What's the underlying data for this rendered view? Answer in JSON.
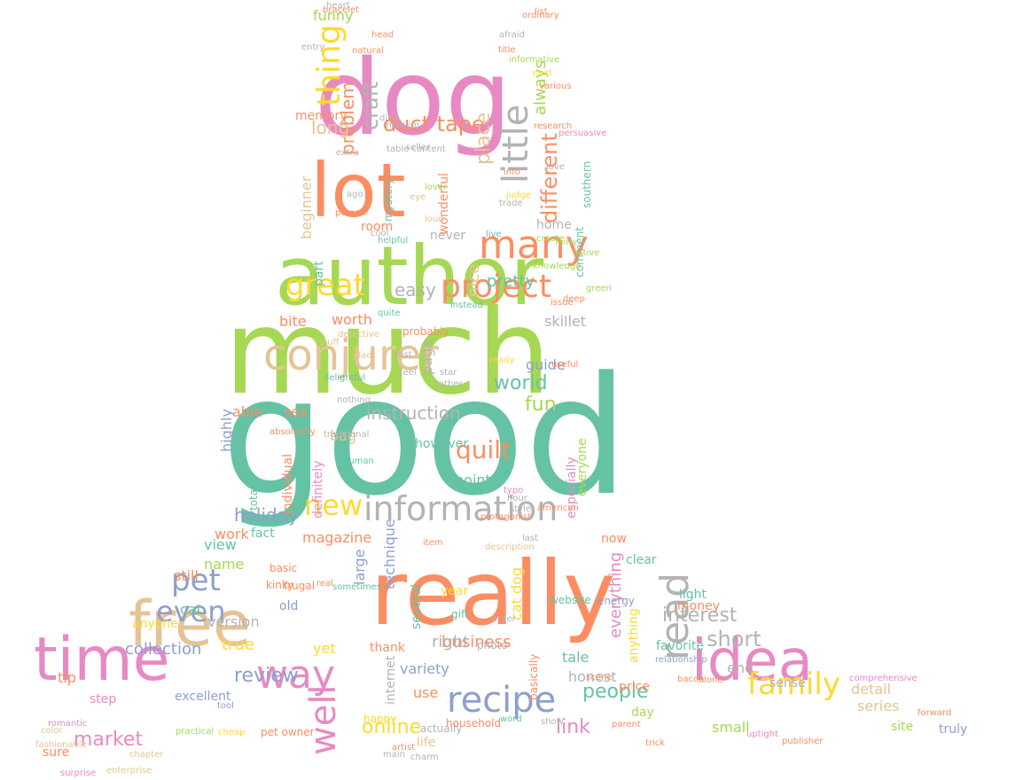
{
  "palette": {
    "teal": "#66c2a5",
    "orange": "#fc8d62",
    "blue": "#8da0cb",
    "pink": "#e78ac3",
    "green": "#a6d854",
    "yellow": "#ffd92f",
    "tan": "#e5c494",
    "gray": "#b3b3b3"
  },
  "mask_shape": "dog-silhouette",
  "words": [
    {
      "text": "good",
      "color": "teal"
    },
    {
      "text": "much",
      "color": "green"
    },
    {
      "text": "really",
      "color": "orange"
    },
    {
      "text": "dog",
      "color": "pink"
    },
    {
      "text": "author",
      "color": "green"
    },
    {
      "text": "time",
      "color": "pink"
    },
    {
      "text": "idea",
      "color": "pink"
    },
    {
      "text": "lot",
      "color": "orange"
    },
    {
      "text": "free",
      "color": "tan"
    },
    {
      "text": "conjurer",
      "color": "tan"
    },
    {
      "text": "information",
      "color": "gray"
    },
    {
      "text": "recipe",
      "color": "blue"
    },
    {
      "text": "many",
      "color": "orange"
    },
    {
      "text": "project",
      "color": "orange"
    },
    {
      "text": "little",
      "color": "gray"
    },
    {
      "text": "family",
      "color": "yellow"
    },
    {
      "text": "read",
      "color": "gray"
    },
    {
      "text": "well",
      "color": "pink"
    },
    {
      "text": "way",
      "color": "pink"
    },
    {
      "text": "pet",
      "color": "blue"
    },
    {
      "text": "even",
      "color": "blue"
    },
    {
      "text": "great",
      "color": "yellow"
    },
    {
      "text": "thing",
      "color": "yellow"
    },
    {
      "text": "new",
      "color": "yellow"
    },
    {
      "text": "quilt",
      "color": "orange"
    },
    {
      "text": "duct tape",
      "color": "orange"
    },
    {
      "text": "interest",
      "color": "gray"
    },
    {
      "text": "short",
      "color": "gray"
    },
    {
      "text": "market",
      "color": "pink"
    },
    {
      "text": "link",
      "color": "pink"
    },
    {
      "text": "people",
      "color": "teal"
    },
    {
      "text": "online",
      "color": "yellow"
    },
    {
      "text": "world",
      "color": "teal"
    },
    {
      "text": "instruction",
      "color": "gray"
    },
    {
      "text": "review",
      "color": "blue"
    },
    {
      "text": "collection",
      "color": "blue"
    },
    {
      "text": "business",
      "color": "orange"
    },
    {
      "text": "holiday",
      "color": "blue"
    },
    {
      "text": "fun",
      "color": "green"
    },
    {
      "text": "different",
      "color": "orange"
    },
    {
      "text": "craft",
      "color": "gray"
    },
    {
      "text": "problem",
      "color": "orange"
    },
    {
      "text": "place",
      "color": "tan"
    },
    {
      "text": "always",
      "color": "green"
    },
    {
      "text": "long",
      "color": "tan"
    },
    {
      "text": "funny",
      "color": "green"
    },
    {
      "text": "easy",
      "color": "gray"
    },
    {
      "text": "pretty",
      "color": "teal"
    },
    {
      "text": "nice",
      "color": "tan"
    },
    {
      "text": "worth",
      "color": "orange"
    },
    {
      "text": "skillet",
      "color": "gray"
    },
    {
      "text": "bite",
      "color": "orange"
    },
    {
      "text": "able",
      "color": "orange"
    },
    {
      "text": "sex",
      "color": "orange"
    },
    {
      "text": "guide",
      "color": "blue"
    },
    {
      "text": "highly",
      "color": "blue"
    },
    {
      "text": "bag",
      "color": "tan"
    },
    {
      "text": "however",
      "color": "teal"
    },
    {
      "text": "technique",
      "color": "blue"
    },
    {
      "text": "point",
      "color": "teal"
    },
    {
      "text": "work",
      "color": "orange"
    },
    {
      "text": "fact",
      "color": "teal"
    },
    {
      "text": "magazine",
      "color": "orange"
    },
    {
      "text": "view",
      "color": "teal"
    },
    {
      "text": "name",
      "color": "green"
    },
    {
      "text": "still",
      "color": "orange"
    },
    {
      "text": "large",
      "color": "blue"
    },
    {
      "text": "year",
      "color": "yellow"
    },
    {
      "text": "right",
      "color": "gray"
    },
    {
      "text": "cat",
      "color": "teal"
    },
    {
      "text": "anyone",
      "color": "yellow"
    },
    {
      "text": "version",
      "color": "gray"
    },
    {
      "text": "old",
      "color": "blue"
    },
    {
      "text": "true",
      "color": "yellow"
    },
    {
      "text": "yet",
      "color": "yellow"
    },
    {
      "text": "thank",
      "color": "orange"
    },
    {
      "text": "internet",
      "color": "gray"
    },
    {
      "text": "variety",
      "color": "blue"
    },
    {
      "text": "use",
      "color": "orange"
    },
    {
      "text": "tip",
      "color": "orange"
    },
    {
      "text": "step",
      "color": "pink"
    },
    {
      "text": "excellent",
      "color": "blue"
    },
    {
      "text": "sure",
      "color": "orange"
    },
    {
      "text": "life",
      "color": "tan"
    },
    {
      "text": "honest",
      "color": "gray"
    },
    {
      "text": "tale",
      "color": "teal"
    },
    {
      "text": "price",
      "color": "orange"
    },
    {
      "text": "day",
      "color": "green"
    },
    {
      "text": "favorite",
      "color": "teal"
    },
    {
      "text": "money",
      "color": "orange"
    },
    {
      "text": "light",
      "color": "teal"
    },
    {
      "text": "now",
      "color": "orange"
    },
    {
      "text": "clear",
      "color": "teal"
    },
    {
      "text": "end",
      "color": "gray"
    },
    {
      "text": "sense",
      "color": "gray"
    },
    {
      "text": "detail",
      "color": "tan"
    },
    {
      "text": "small",
      "color": "green"
    },
    {
      "text": "series",
      "color": "tan"
    },
    {
      "text": "site",
      "color": "green"
    },
    {
      "text": "truly",
      "color": "blue"
    },
    {
      "text": "home",
      "color": "gray"
    },
    {
      "text": "room",
      "color": "orange"
    },
    {
      "text": "never",
      "color": "gray"
    },
    {
      "text": "part",
      "color": "teal"
    },
    {
      "text": "memory",
      "color": "orange"
    },
    {
      "text": "beginner",
      "color": "tan"
    },
    {
      "text": "cat dog",
      "color": "yellow"
    },
    {
      "text": "everything",
      "color": "pink"
    },
    {
      "text": "anything",
      "color": "yellow"
    },
    {
      "text": "especially",
      "color": "pink"
    },
    {
      "text": "everyone",
      "color": "green"
    },
    {
      "text": "several",
      "color": "teal"
    },
    {
      "text": "definitely",
      "color": "pink"
    },
    {
      "text": "individual",
      "color": "orange"
    },
    {
      "text": "totally",
      "color": "teal"
    },
    {
      "text": "page",
      "color": "gray"
    },
    {
      "text": "wonderful",
      "color": "orange"
    },
    {
      "text": "southern",
      "color": "teal"
    },
    {
      "text": "mystery",
      "color": "teal"
    },
    {
      "text": "comment",
      "color": "teal"
    },
    {
      "text": "website",
      "color": "teal"
    },
    {
      "text": "energy",
      "color": "blue"
    },
    {
      "text": "gift",
      "color": "teal"
    },
    {
      "text": "photo",
      "color": "gray"
    },
    {
      "text": "basically",
      "color": "orange"
    },
    {
      "text": "happy",
      "color": "yellow"
    },
    {
      "text": "actually",
      "color": "gray"
    },
    {
      "text": "household",
      "color": "orange"
    },
    {
      "text": "pet owner",
      "color": "orange"
    },
    {
      "text": "tool",
      "color": "blue"
    },
    {
      "text": "practical",
      "color": "green"
    },
    {
      "text": "cheap",
      "color": "yellow"
    },
    {
      "text": "chapter",
      "color": "tan"
    },
    {
      "text": "romantic",
      "color": "pink"
    },
    {
      "text": "uptight",
      "color": "pink"
    },
    {
      "text": "comprehensive",
      "color": "pink"
    },
    {
      "text": "bacon",
      "color": "orange"
    },
    {
      "text": "alone",
      "color": "orange"
    },
    {
      "text": "scene",
      "color": "orange"
    },
    {
      "text": "instead",
      "color": "teal"
    },
    {
      "text": "probably",
      "color": "orange"
    },
    {
      "text": "quite",
      "color": "teal"
    },
    {
      "text": "detective",
      "color": "tan"
    },
    {
      "text": "glad",
      "color": "tan"
    },
    {
      "text": "fast",
      "color": "gray"
    },
    {
      "text": "feel",
      "color": "gray"
    },
    {
      "text": "star",
      "color": "gray"
    },
    {
      "text": "rather",
      "color": "gray"
    },
    {
      "text": "useful",
      "color": "orange"
    },
    {
      "text": "ready",
      "color": "yellow"
    },
    {
      "text": "kinky",
      "color": "orange"
    },
    {
      "text": "frugal",
      "color": "orange"
    },
    {
      "text": "basic",
      "color": "orange"
    },
    {
      "text": "real",
      "color": "orange"
    },
    {
      "text": "sometimes",
      "color": "teal"
    },
    {
      "text": "helpful",
      "color": "teal"
    },
    {
      "text": "seller",
      "color": "gray"
    },
    {
      "text": "lover",
      "color": "green"
    },
    {
      "text": "info",
      "color": "orange"
    },
    {
      "text": "live",
      "color": "teal"
    },
    {
      "text": "judge",
      "color": "yellow"
    },
    {
      "text": "afraid",
      "color": "gray"
    },
    {
      "text": "love",
      "color": "gray"
    },
    {
      "text": "research",
      "color": "orange"
    },
    {
      "text": "nothing",
      "color": "gray"
    },
    {
      "text": "human",
      "color": "teal"
    },
    {
      "text": "hour",
      "color": "gray"
    },
    {
      "text": "typo",
      "color": "pink"
    },
    {
      "text": "style",
      "color": "gray"
    },
    {
      "text": "order",
      "color": "gray"
    },
    {
      "text": "last",
      "color": "gray"
    },
    {
      "text": "description",
      "color": "tan"
    },
    {
      "text": "protagonist",
      "color": "orange"
    },
    {
      "text": "item",
      "color": "orange"
    },
    {
      "text": "american",
      "color": "orange"
    },
    {
      "text": "absolutely",
      "color": "orange"
    },
    {
      "text": "traditional",
      "color": "gray"
    },
    {
      "text": "delightful",
      "color": "teal"
    },
    {
      "text": "stuff",
      "color": "tan"
    },
    {
      "text": "color",
      "color": "tan"
    },
    {
      "text": "fashionable",
      "color": "tan"
    },
    {
      "text": "surprise",
      "color": "pink"
    },
    {
      "text": "enterprise",
      "color": "tan"
    },
    {
      "text": "charm",
      "color": "gray"
    },
    {
      "text": "main",
      "color": "gray"
    },
    {
      "text": "artist",
      "color": "orange"
    },
    {
      "text": "show",
      "color": "gray"
    },
    {
      "text": "word",
      "color": "teal"
    },
    {
      "text": "parent",
      "color": "orange"
    },
    {
      "text": "trick",
      "color": "orange"
    },
    {
      "text": "relationship",
      "color": "blue"
    },
    {
      "text": "publisher",
      "color": "orange"
    },
    {
      "text": "forward",
      "color": "orange"
    },
    {
      "text": "heart",
      "color": "gray"
    },
    {
      "text": "bracelet",
      "color": "orange"
    },
    {
      "text": "list",
      "color": "orange"
    },
    {
      "text": "ordinary",
      "color": "orange"
    },
    {
      "text": "head",
      "color": "orange"
    },
    {
      "text": "natural",
      "color": "orange"
    },
    {
      "text": "informative",
      "color": "green"
    },
    {
      "text": "title",
      "color": "orange"
    },
    {
      "text": "next",
      "color": "yellow"
    },
    {
      "text": "various",
      "color": "orange"
    },
    {
      "text": "dine",
      "color": "gray"
    },
    {
      "text": "medium",
      "color": "gray"
    },
    {
      "text": "trade",
      "color": "gray"
    },
    {
      "text": "persuasive",
      "color": "pink"
    },
    {
      "text": "create",
      "color": "green"
    },
    {
      "text": "knowledge",
      "color": "green"
    },
    {
      "text": "active",
      "color": "green"
    },
    {
      "text": "fairly",
      "color": "green"
    },
    {
      "text": "issue",
      "color": "orange"
    },
    {
      "text": "deep",
      "color": "orange"
    },
    {
      "text": "green",
      "color": "green"
    },
    {
      "text": "entry",
      "color": "gray"
    },
    {
      "text": "extra",
      "color": "gray"
    },
    {
      "text": "person",
      "color": "orange"
    },
    {
      "text": "ago",
      "color": "gray"
    },
    {
      "text": "cool",
      "color": "gray"
    },
    {
      "text": "eye",
      "color": "tan"
    },
    {
      "text": "loud",
      "color": "tan"
    },
    {
      "text": "table content",
      "color": "gray"
    }
  ]
}
